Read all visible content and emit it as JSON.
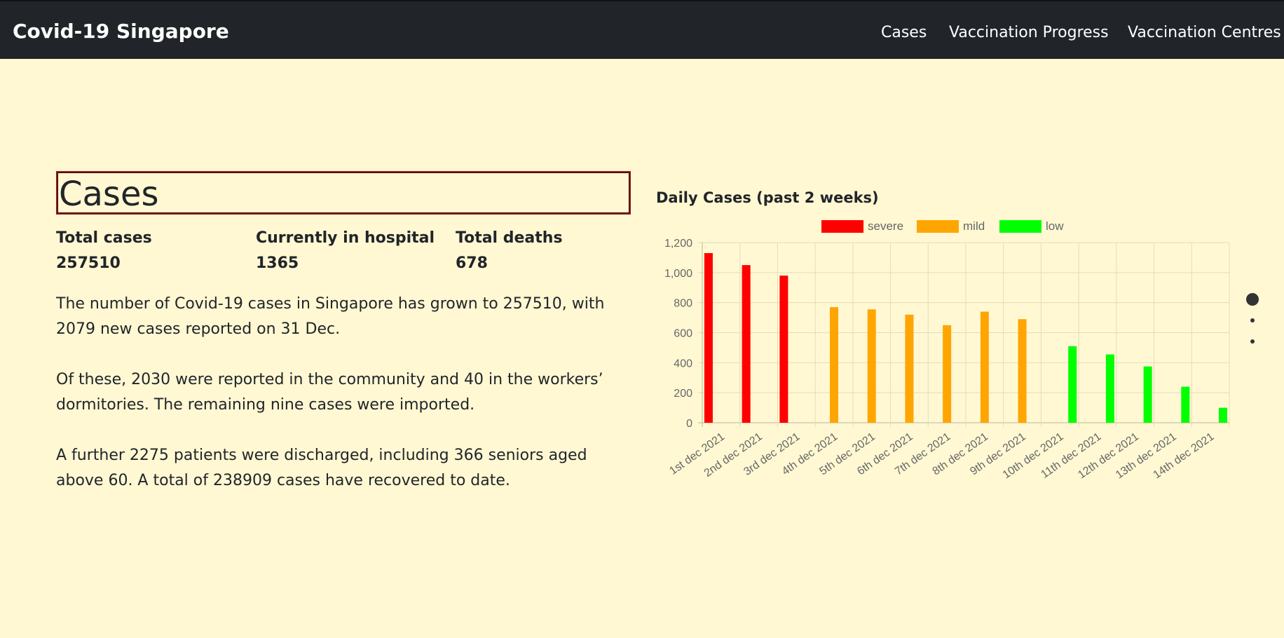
{
  "navbar": {
    "brand": "Covid-19 Singapore",
    "links": [
      "Cases",
      "Vaccination Progress",
      "Vaccination Centres"
    ]
  },
  "section": {
    "title": "Cases"
  },
  "stats": [
    {
      "label": "Total cases",
      "value": "257510"
    },
    {
      "label": "Currently in hospital",
      "value": "1365"
    },
    {
      "label": "Total deaths",
      "value": "678"
    }
  ],
  "paragraphs": [
    "The number of Covid-19 cases in Singapore has grown to 257510, with 2079 new cases reported on 31 Dec.",
    "Of these, 2030 were reported in the community and 40 in the workers’ dormitories. The remaining nine cases were imported.",
    "A further 2275 patients were discharged, including 366 seniors aged above 60. A total of 238909 cases have recovered to date."
  ],
  "colors": {
    "navbar": "#212529",
    "background": "#fff8d3",
    "severe": "#ff0000",
    "mild": "#ffa500",
    "low": "#00ff00"
  },
  "chart_data": {
    "type": "bar",
    "title": "Daily Cases (past 2 weeks)",
    "xlabel": "",
    "ylabel": "",
    "ylim": [
      0,
      1200
    ],
    "yticks": [
      0,
      200,
      400,
      600,
      800,
      1000,
      1200
    ],
    "ytick_labels": [
      "0",
      "200",
      "400",
      "600",
      "800",
      "1,000",
      "1,200"
    ],
    "grid": true,
    "legend_position": "top",
    "categories": [
      "1st dec 2021",
      "2nd dec 2021",
      "3rd dec 2021",
      "4th dec 2021",
      "5th dec 2021",
      "6th dec 2021",
      "7th dec 2021",
      "8th dec 2021",
      "9th dec 2021",
      "10th dec 2021",
      "11th dec 2021",
      "12th dec 2021",
      "13th dec 2021",
      "14th dec 2021"
    ],
    "series": [
      {
        "name": "severe",
        "color": "#ff0000",
        "values": [
          1130,
          1050,
          980,
          null,
          null,
          null,
          null,
          null,
          null,
          null,
          null,
          null,
          null,
          null
        ]
      },
      {
        "name": "mild",
        "color": "#ffa500",
        "values": [
          null,
          null,
          null,
          770,
          755,
          720,
          650,
          740,
          690,
          null,
          null,
          null,
          null,
          null
        ]
      },
      {
        "name": "low",
        "color": "#00ff00",
        "values": [
          null,
          null,
          null,
          null,
          null,
          null,
          null,
          null,
          null,
          510,
          455,
          375,
          240,
          100
        ]
      }
    ]
  }
}
